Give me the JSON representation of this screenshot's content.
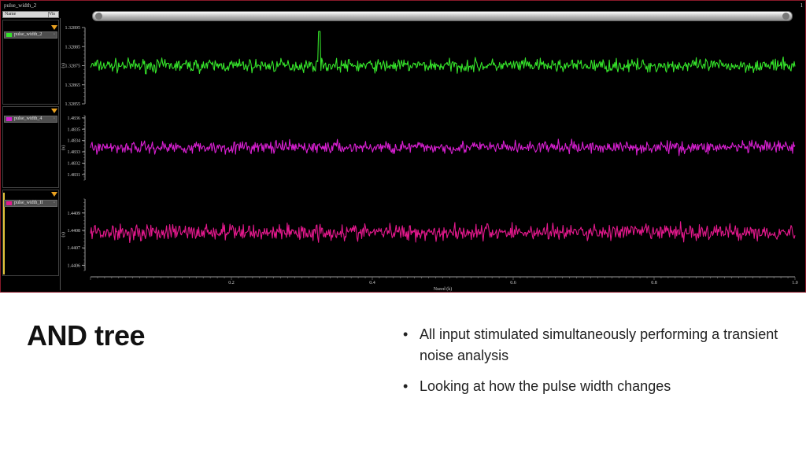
{
  "window": {
    "title": "pulse_width_2",
    "corner_label": "1"
  },
  "legend_panel": {
    "header_name": "Name",
    "header_visible": "Vis",
    "signals": [
      {
        "name": "pulse_width_2",
        "color": "#35e32a",
        "visibility_icon": "eye-icon"
      },
      {
        "name": "pulse_width_4",
        "color": "#d61fcf",
        "visibility_icon": "eye-icon"
      },
      {
        "name": "pulse_width_II",
        "color": "#e3188c",
        "visibility_icon": "eye-icon"
      }
    ],
    "filter_icon": "filter-funnel-icon"
  },
  "chart_data": {
    "type": "line",
    "x_axis": {
      "label": "Nseed (k)",
      "range": [
        0,
        1.0
      ],
      "ticks": [
        0.2,
        0.4,
        0.6,
        0.8,
        1.0
      ]
    },
    "grid": false,
    "background": "#000000",
    "subplots": [
      {
        "series_name": "pulse_width_2",
        "color": "#35e32a",
        "ylabel": "(s)",
        "yticks": [
          "1.32855",
          "1.32865",
          "1.32875",
          "1.32885",
          "1.32895"
        ],
        "ylim": [
          1.32855,
          1.32895
        ],
        "mean": 1.32875,
        "noise_amplitude": 5e-05,
        "spike": {
          "x": 0.325,
          "y": 1.32893
        }
      },
      {
        "series_name": "pulse_width_4",
        "color": "#d61fcf",
        "ylabel": "(s)",
        "yticks": [
          "1.4831",
          "1.4832",
          "1.4833",
          "1.4834",
          "1.4835",
          "1.4836"
        ],
        "ylim": [
          1.48305,
          1.48362
        ],
        "mean": 1.48334,
        "noise_amplitude": 8e-05
      },
      {
        "series_name": "pulse_width_II",
        "color": "#e3188c",
        "ylabel": "(s)",
        "yticks": [
          "1.4406",
          "1.4407",
          "1.4408",
          "1.4409"
        ],
        "ylim": [
          1.44057,
          1.44098
        ],
        "mean": 1.44079,
        "noise_amplitude": 7e-05
      }
    ]
  },
  "slide": {
    "title": "AND tree",
    "bullets": [
      "All input stimulated simultaneously performing a transient noise analysis",
      "Looking at how the pulse width changes"
    ]
  }
}
